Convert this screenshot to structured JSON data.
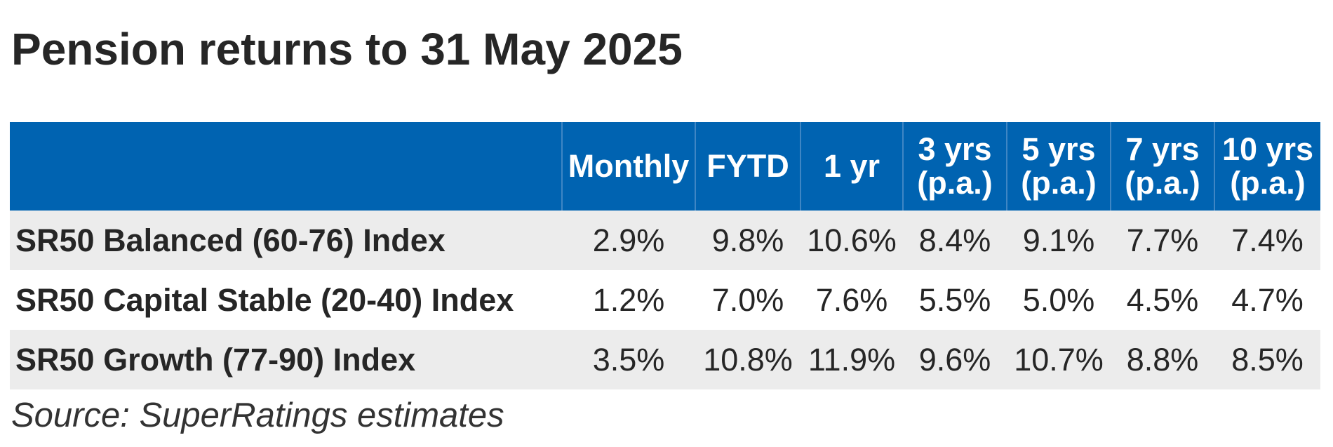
{
  "title": "Pension returns to 31 May 2025",
  "table": {
    "headers": [
      {
        "lines": [
          ""
        ]
      },
      {
        "lines": [
          "Monthly"
        ]
      },
      {
        "lines": [
          "FYTD"
        ]
      },
      {
        "lines": [
          "1 yr"
        ]
      },
      {
        "lines": [
          "3 yrs",
          "(p.a.)"
        ]
      },
      {
        "lines": [
          "5 yrs",
          "(p.a.)"
        ]
      },
      {
        "lines": [
          "7 yrs",
          "(p.a.)"
        ]
      },
      {
        "lines": [
          "10 yrs",
          "(p.a.)"
        ]
      }
    ],
    "rows": [
      {
        "name": "SR50 Balanced (60-76) Index",
        "values": [
          "2.9%",
          "9.8%",
          "10.6%",
          "8.4%",
          "9.1%",
          "7.7%",
          "7.4%"
        ]
      },
      {
        "name": "SR50 Capital Stable (20-40) Index",
        "values": [
          "1.2%",
          "7.0%",
          "7.6%",
          "5.5%",
          "5.0%",
          "4.5%",
          "4.7%"
        ]
      },
      {
        "name": "SR50 Growth (77-90) Index",
        "values": [
          "3.5%",
          "10.8%",
          "11.9%",
          "9.6%",
          "10.7%",
          "8.8%",
          "8.5%"
        ]
      }
    ]
  },
  "source": "Source: SuperRatings estimates",
  "colors": {
    "header_bg": "#0063b1",
    "header_text": "#ffffff",
    "shaded_row": "#ececec"
  }
}
